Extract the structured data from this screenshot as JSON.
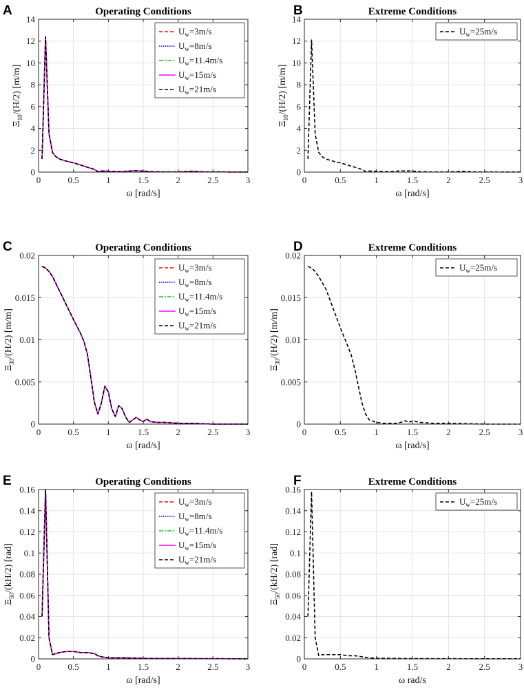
{
  "chart_data": [
    {
      "id": "A",
      "type": "line",
      "letter": "A",
      "title": "Operating Conditions",
      "ylabel": {
        "base": "Ξ",
        "sub": "10",
        "rest": "/(H/2)  [m/m]"
      },
      "xlabel": "ω  [rad/s]",
      "xlim": [
        0,
        3
      ],
      "ylim": [
        0,
        14
      ],
      "xticks": [
        0,
        0.5,
        1,
        1.5,
        2,
        2.5,
        3
      ],
      "xtick_labels": [
        "0",
        "0.5",
        "1",
        "1.5",
        "2",
        "2.5",
        "3"
      ],
      "yticks": [
        0,
        2,
        4,
        6,
        8,
        10,
        12,
        14
      ],
      "ytick_labels": [
        "0",
        "2",
        "4",
        "6",
        "8",
        "10",
        "12",
        "14"
      ],
      "grid": true,
      "legend_position": "top-right",
      "series": [
        {
          "name": "U_w=3m/s",
          "label_main": "U",
          "label_sub": "w",
          "label_rest": "=3m/s",
          "color": "#ff0000",
          "dash": "5,3"
        },
        {
          "name": "U_w=8m/s",
          "label_main": "U",
          "label_sub": "w",
          "label_rest": "=8m/s",
          "color": "#0000cc",
          "dash": "1.5,1.5"
        },
        {
          "name": "U_w=11.4m/s",
          "label_main": "U",
          "label_sub": "w",
          "label_rest": "=11.4m/s",
          "color": "#00dd00",
          "dash": "6,2,2,2"
        },
        {
          "name": "U_w=15m/s",
          "label_main": "U",
          "label_sub": "w",
          "label_rest": "=15m/s",
          "color": "#ff00ff",
          "dash": ""
        },
        {
          "name": "U_w=21m/s",
          "label_main": "U",
          "label_sub": "w",
          "label_rest": "=21m/s",
          "color": "#000000",
          "dash": "5,3"
        }
      ],
      "x": [
        0.05,
        0.1,
        0.15,
        0.2,
        0.25,
        0.3,
        0.4,
        0.5,
        0.6,
        0.7,
        0.8,
        0.85,
        0.9,
        1.0,
        1.1,
        1.2,
        1.3,
        1.4,
        1.5,
        1.6,
        1.8,
        2.0,
        2.2,
        2.4,
        2.6,
        2.8,
        3.0
      ],
      "y": [
        1.2,
        12.4,
        3.5,
        1.8,
        1.4,
        1.2,
        1.0,
        0.85,
        0.65,
        0.45,
        0.25,
        0.05,
        0.1,
        0.08,
        0.05,
        0.05,
        0.1,
        0.12,
        0.1,
        0.05,
        0.02,
        0.02,
        0.08,
        0.02,
        0.02,
        0.01,
        0.01
      ]
    },
    {
      "id": "B",
      "type": "line",
      "letter": "B",
      "title": "Extreme Conditions",
      "ylabel": {
        "base": "Ξ",
        "sub": "10",
        "rest": "/(H/2)  [m/m]"
      },
      "xlabel": "ω  [rad/s]",
      "xlim": [
        0,
        3
      ],
      "ylim": [
        0,
        14
      ],
      "xticks": [
        0,
        0.5,
        1,
        1.5,
        2,
        2.5,
        3
      ],
      "xtick_labels": [
        "0",
        "0.5",
        "1",
        "1.5",
        "2",
        "2.5",
        "3"
      ],
      "yticks": [
        0,
        2,
        4,
        6,
        8,
        10,
        12,
        14
      ],
      "ytick_labels": [
        "0",
        "2",
        "4",
        "6",
        "8",
        "10",
        "12",
        "14"
      ],
      "grid": true,
      "legend_position": "top-right",
      "series": [
        {
          "name": "U_w=25m/s",
          "label_main": "U",
          "label_sub": "w",
          "label_rest": "=25m/s",
          "color": "#000000",
          "dash": "5,3"
        }
      ],
      "x": [
        0.05,
        0.1,
        0.15,
        0.2,
        0.25,
        0.3,
        0.4,
        0.5,
        0.6,
        0.7,
        0.8,
        0.85,
        0.9,
        1.0,
        1.1,
        1.2,
        1.3,
        1.4,
        1.5,
        1.6,
        1.8,
        2.0,
        2.2,
        2.4,
        2.6,
        2.8,
        3.0
      ],
      "y": [
        1.2,
        12.1,
        3.5,
        1.8,
        1.4,
        1.2,
        1.0,
        0.85,
        0.65,
        0.45,
        0.25,
        0.05,
        0.1,
        0.08,
        0.05,
        0.05,
        0.1,
        0.12,
        0.1,
        0.05,
        0.02,
        0.02,
        0.08,
        0.02,
        0.02,
        0.01,
        0.01
      ]
    },
    {
      "id": "C",
      "type": "line",
      "letter": "C",
      "title": "Operating Conditions",
      "ylabel": {
        "base": "Ξ",
        "sub": "30",
        "rest": "/(H/2)  [m/m]"
      },
      "xlabel": "ω  [rad/s]",
      "xlim": [
        0,
        3
      ],
      "ylim": [
        0,
        0.02
      ],
      "xticks": [
        0,
        0.5,
        1,
        1.5,
        2,
        2.5,
        3
      ],
      "xtick_labels": [
        "0",
        "0.5",
        "1",
        "1.5",
        "2",
        "2.5",
        "3"
      ],
      "yticks": [
        0,
        0.005,
        0.01,
        0.015,
        0.02
      ],
      "ytick_labels": [
        "0",
        "0.005",
        "0.01",
        "0.015",
        "0.02"
      ],
      "grid": true,
      "legend_position": "top-right",
      "series": [
        {
          "name": "U_w=3m/s",
          "label_main": "U",
          "label_sub": "w",
          "label_rest": "=3m/s",
          "color": "#ff0000",
          "dash": "5,3"
        },
        {
          "name": "U_w=8m/s",
          "label_main": "U",
          "label_sub": "w",
          "label_rest": "=8m/s",
          "color": "#0000cc",
          "dash": "1.5,1.5"
        },
        {
          "name": "U_w=11.4m/s",
          "label_main": "U",
          "label_sub": "w",
          "label_rest": "=11.4m/s",
          "color": "#00dd00",
          "dash": "6,2,2,2"
        },
        {
          "name": "U_w=15m/s",
          "label_main": "U",
          "label_sub": "w",
          "label_rest": "=15m/s",
          "color": "#ff00ff",
          "dash": ""
        },
        {
          "name": "U_w=21m/s",
          "label_main": "U",
          "label_sub": "w",
          "label_rest": "=21m/s",
          "color": "#000000",
          "dash": "5,3"
        }
      ],
      "x": [
        0.05,
        0.1,
        0.15,
        0.2,
        0.3,
        0.4,
        0.5,
        0.6,
        0.65,
        0.7,
        0.75,
        0.8,
        0.85,
        0.9,
        0.95,
        1.0,
        1.05,
        1.1,
        1.15,
        1.2,
        1.25,
        1.3,
        1.35,
        1.4,
        1.45,
        1.5,
        1.55,
        1.6,
        1.7,
        1.8,
        2.0,
        2.2,
        2.5,
        3.0
      ],
      "y": [
        0.0187,
        0.0185,
        0.0181,
        0.0175,
        0.0158,
        0.0141,
        0.0124,
        0.0108,
        0.0098,
        0.0083,
        0.0055,
        0.0026,
        0.0012,
        0.0025,
        0.0045,
        0.0038,
        0.0018,
        0.0009,
        0.0022,
        0.0018,
        0.0008,
        0.0002,
        0.0005,
        0.0008,
        0.0005,
        0.0003,
        0.0006,
        0.0003,
        0.0002,
        0.0002,
        0.0001,
        0.0001,
        0.0,
        0.0
      ]
    },
    {
      "id": "D",
      "type": "line",
      "letter": "D",
      "title": "Extreme Conditions",
      "ylabel": {
        "base": "Ξ",
        "sub": "30",
        "rest": "/(H/2)  [m/m]"
      },
      "xlabel": "ω  [rad/s]",
      "xlim": [
        0,
        3
      ],
      "ylim": [
        0,
        0.02
      ],
      "xticks": [
        0,
        0.5,
        1,
        1.5,
        2,
        2.5,
        3
      ],
      "xtick_labels": [
        "0",
        "0.5",
        "1",
        "1.5",
        "2",
        "2.5",
        "3"
      ],
      "yticks": [
        0,
        0.005,
        0.01,
        0.015,
        0.02
      ],
      "ytick_labels": [
        "0",
        "0.005",
        "0.01",
        "0.015",
        "0.02"
      ],
      "grid": true,
      "legend_position": "top-right",
      "series": [
        {
          "name": "U_w=25m/s",
          "label_main": "U",
          "label_sub": "w",
          "label_rest": "=25m/s",
          "color": "#000000",
          "dash": "5,3"
        }
      ],
      "x": [
        0.05,
        0.1,
        0.15,
        0.2,
        0.3,
        0.4,
        0.5,
        0.6,
        0.65,
        0.7,
        0.75,
        0.8,
        0.85,
        0.9,
        1.0,
        1.1,
        1.2,
        1.3,
        1.4,
        1.45,
        1.5,
        1.6,
        1.8,
        2.0,
        2.5,
        3.0
      ],
      "y": [
        0.0187,
        0.0185,
        0.0181,
        0.0175,
        0.016,
        0.0137,
        0.0114,
        0.0093,
        0.0082,
        0.0065,
        0.0045,
        0.0025,
        0.0012,
        0.0005,
        0.0002,
        0.0001,
        0.0001,
        0.0001,
        0.0004,
        0.0002,
        0.0004,
        0.0002,
        0.0001,
        0.0001,
        0.0,
        0.0
      ]
    },
    {
      "id": "E",
      "type": "line",
      "letter": "E",
      "title": "Operating Conditions",
      "ylabel": {
        "base": "Ξ",
        "sub": "50",
        "rest": "/(kH/2)  [rad]"
      },
      "xlabel": "ω  [rad/s]",
      "xlim": [
        0,
        3
      ],
      "ylim": [
        0,
        0.16
      ],
      "xticks": [
        0,
        0.5,
        1,
        1.5,
        2,
        2.5,
        3
      ],
      "xtick_labels": [
        "0",
        "0.5",
        "1",
        "1.5",
        "2",
        "2.5",
        "3"
      ],
      "yticks": [
        0,
        0.02,
        0.04,
        0.06,
        0.08,
        0.1,
        0.12,
        0.14,
        0.16
      ],
      "ytick_labels": [
        "0",
        "0.02",
        "0.04",
        "0.06",
        "0.08",
        "0.1",
        "0.12",
        "0.14",
        "0.16"
      ],
      "grid": true,
      "legend_position": "top-right",
      "series": [
        {
          "name": "U_w=3m/s",
          "label_main": "U",
          "label_sub": "w",
          "label_rest": "=3m/s",
          "color": "#ff0000",
          "dash": "5,3"
        },
        {
          "name": "U_w=8m/s",
          "label_main": "U",
          "label_sub": "w",
          "label_rest": "=8m/s",
          "color": "#0000cc",
          "dash": "1.5,1.5"
        },
        {
          "name": "U_w=11.4m/s",
          "label_main": "U",
          "label_sub": "w",
          "label_rest": "=11.4m/s",
          "color": "#00dd00",
          "dash": "6,2,2,2"
        },
        {
          "name": "U_w=15m/s",
          "label_main": "U",
          "label_sub": "w",
          "label_rest": "=15m/s",
          "color": "#ff00ff",
          "dash": ""
        },
        {
          "name": "U_w=21m/s",
          "label_main": "U",
          "label_sub": "w",
          "label_rest": "=21m/s",
          "color": "#000000",
          "dash": "5,3"
        }
      ],
      "x": [
        0.05,
        0.1,
        0.15,
        0.2,
        0.25,
        0.3,
        0.4,
        0.5,
        0.6,
        0.7,
        0.8,
        0.85,
        0.9,
        1.0,
        1.2,
        1.5,
        2.0,
        2.5,
        3.0
      ],
      "y": [
        0.04,
        0.16,
        0.02,
        0.004,
        0.005,
        0.006,
        0.007,
        0.007,
        0.006,
        0.006,
        0.005,
        0.003,
        0.002,
        0.001,
        0.001,
        0.0005,
        0.0003,
        0.0002,
        0.0001
      ]
    },
    {
      "id": "F",
      "type": "line",
      "letter": "F",
      "title": "Extreme Conditions",
      "ylabel": {
        "base": "Ξ",
        "sub": "50",
        "rest": "/(kH/2)  [rad]"
      },
      "xlabel": "ω  rad/s",
      "xlim": [
        0,
        3
      ],
      "ylim": [
        0,
        0.16
      ],
      "xticks": [
        0,
        0.5,
        1,
        1.5,
        2,
        2.5,
        3
      ],
      "xtick_labels": [
        "0",
        "0.5",
        "1",
        "1.5",
        "2",
        "2.5",
        "3"
      ],
      "yticks": [
        0,
        0.02,
        0.04,
        0.06,
        0.08,
        0.1,
        0.12,
        0.14,
        0.16
      ],
      "ytick_labels": [
        "0",
        "0.02",
        "0.04",
        "0.06",
        "0.08",
        "0.1",
        "0.12",
        "0.14",
        "0.16"
      ],
      "grid": true,
      "legend_position": "top-right",
      "series": [
        {
          "name": "U_w=25m/s",
          "label_main": "U",
          "label_sub": "w",
          "label_rest": "=25m/s",
          "color": "#000000",
          "dash": "5,3"
        }
      ],
      "x": [
        0.05,
        0.1,
        0.15,
        0.2,
        0.25,
        0.3,
        0.4,
        0.5,
        0.6,
        0.7,
        0.8,
        0.9,
        1.0,
        1.2,
        1.5,
        2.0,
        2.5,
        3.0
      ],
      "y": [
        0.04,
        0.158,
        0.02,
        0.003,
        0.004,
        0.004,
        0.004,
        0.004,
        0.003,
        0.003,
        0.002,
        0.001,
        0.0005,
        0.0005,
        0.0003,
        0.0002,
        0.0001,
        0.0001
      ]
    }
  ]
}
